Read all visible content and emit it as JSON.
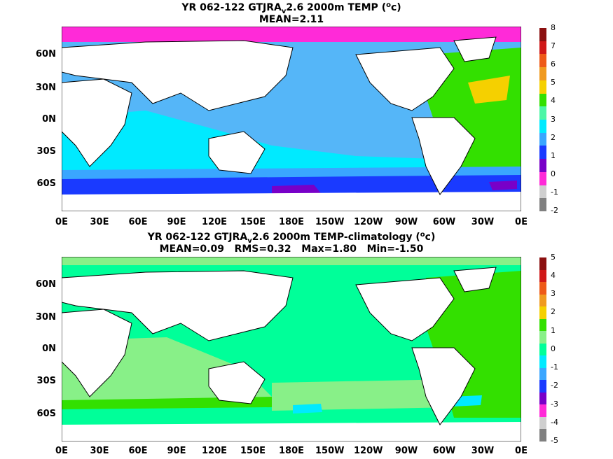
{
  "panels": [
    {
      "title_prefix": "YR 062-122 GTJRA",
      "title_sub": "v",
      "title_mid": "2.6 2000m TEMP (",
      "title_sup": "o",
      "title_suffix": "c)",
      "stats": "MEAN=2.11",
      "field": "2000m temperature",
      "colorbar_labels": [
        "8",
        "7",
        "6",
        "5",
        "4",
        "3",
        "2",
        "1",
        "0",
        "-1",
        "-2"
      ],
      "colorbar_colors": [
        "#8b1010",
        "#d01818",
        "#ee5a18",
        "#f09a20",
        "#f5d000",
        "#33e000",
        "#4df6a6",
        "#00eaff",
        "#3aa6ff",
        "#1a3aff",
        "#7800c8",
        "#ff2ad8",
        "#cfcfcf",
        "#808080"
      ]
    },
    {
      "title_prefix": "YR 062-122 GTJRA",
      "title_sub": "v",
      "title_mid": "2.6 2000m TEMP-climatology (",
      "title_sup": "o",
      "title_suffix": "c)",
      "stats": "MEAN=0.09   RMS=0.32   Max=1.80   Min=-1.50",
      "field": "2000m temperature minus climatology",
      "colorbar_labels": [
        "5",
        "4",
        "3",
        "2",
        "1",
        "0",
        "-1",
        "-2",
        "-3",
        "-4",
        "-5"
      ],
      "colorbar_colors": [
        "#8b1010",
        "#d01818",
        "#ee5a18",
        "#f09a20",
        "#f5d000",
        "#33e000",
        "#88f088",
        "#00ff99",
        "#00eaff",
        "#3aa6ff",
        "#1a3aff",
        "#7800c8",
        "#ff2ad8",
        "#cfcfcf",
        "#808080"
      ]
    }
  ],
  "lat_ticks": [
    "60N",
    "30N",
    "0N",
    "30S",
    "60S"
  ],
  "lon_ticks": [
    "0E",
    "30E",
    "60E",
    "90E",
    "120E",
    "150E",
    "180E",
    "150W",
    "120W",
    "90W",
    "60W",
    "30W",
    "0E"
  ]
}
